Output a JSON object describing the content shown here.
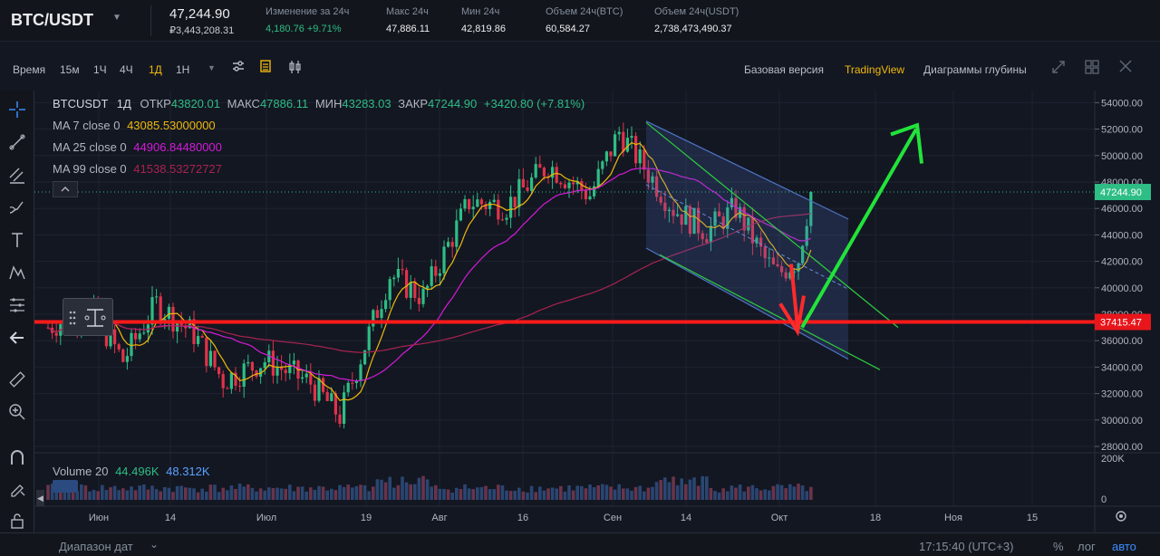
{
  "ticker": {
    "symbol": "BTC/USDT",
    "price": "47,244.90",
    "price_fiat": "₽3,443,208.31",
    "stats": [
      {
        "label": "Изменение за 24ч",
        "value": "4,180.76 +9.71%"
      },
      {
        "label": "Макс 24ч",
        "value": "47,886.11"
      },
      {
        "label": "Мин 24ч",
        "value": "42,819.86"
      },
      {
        "label": "Объем 24ч(BTC)",
        "value": "60,584.27"
      },
      {
        "label": "Объем 24ч(USDT)",
        "value": "2,738,473,490.37"
      }
    ]
  },
  "toolbar": {
    "intervals": [
      "Время",
      "15м",
      "1Ч",
      "4Ч",
      "1Д",
      "1Н"
    ],
    "active_interval": "1Д",
    "views": [
      "Базовая версия",
      "TradingView",
      "Диаграммы глубины"
    ],
    "active_view": "TradingView"
  },
  "legend": {
    "symbol": "BTCUSDT",
    "interval": "1Д",
    "open_label": "ОТКР",
    "open": "43820.01",
    "high_label": "МАКС",
    "high": "47886.11",
    "low_label": "МИН",
    "low": "43283.03",
    "close_label": "ЗАКР",
    "close": "47244.90",
    "change": "+3420.80 (+7.81%)",
    "ma": [
      {
        "label": "MA 7 close 0",
        "value": "43085.53000000",
        "color": "#f0b90b"
      },
      {
        "label": "MA 25 close 0",
        "value": "44906.84480000",
        "color": "#d41bd8"
      },
      {
        "label": "MA 99 close 0",
        "value": "41538.53272727",
        "color": "#a8234f"
      }
    ],
    "volume_label": "Volume 20",
    "volume_a": "44.496K",
    "volume_b": "48.312K"
  },
  "colors": {
    "up": "#2ebd85",
    "down": "#e0334a",
    "support": "#ff1a1a",
    "channel": "#4e73c7"
  },
  "chart_data": {
    "type": "candlestick",
    "title": "BTCUSDT 1Д",
    "x_tick_labels": [
      "Июн",
      "14",
      "Июл",
      "19",
      "Авг",
      "16",
      "Сен",
      "14",
      "Окт",
      "18",
      "Ноя",
      "15"
    ],
    "y_tick_labels": [
      "54000.00",
      "52000.00",
      "50000.00",
      "48000.00",
      "46000.00",
      "44000.00",
      "42000.00",
      "40000.00",
      "38000.00",
      "36000.00",
      "34000.00",
      "32000.00",
      "30000.00",
      "28000.00"
    ],
    "ylim": [
      27300,
      55000
    ],
    "price_tag": "47244.90",
    "support_tag": "37415.47",
    "support_level": 37415.47,
    "volume_ticks": [
      "200K",
      "0"
    ],
    "annotations": [
      "descending channel",
      "support line",
      "projected breakout arrow"
    ]
  },
  "bottom": {
    "range_label": "Диапазон дат",
    "time": "17:15:40 (UTC+3)",
    "percent": "%",
    "log": "лог",
    "auto": "авто"
  }
}
